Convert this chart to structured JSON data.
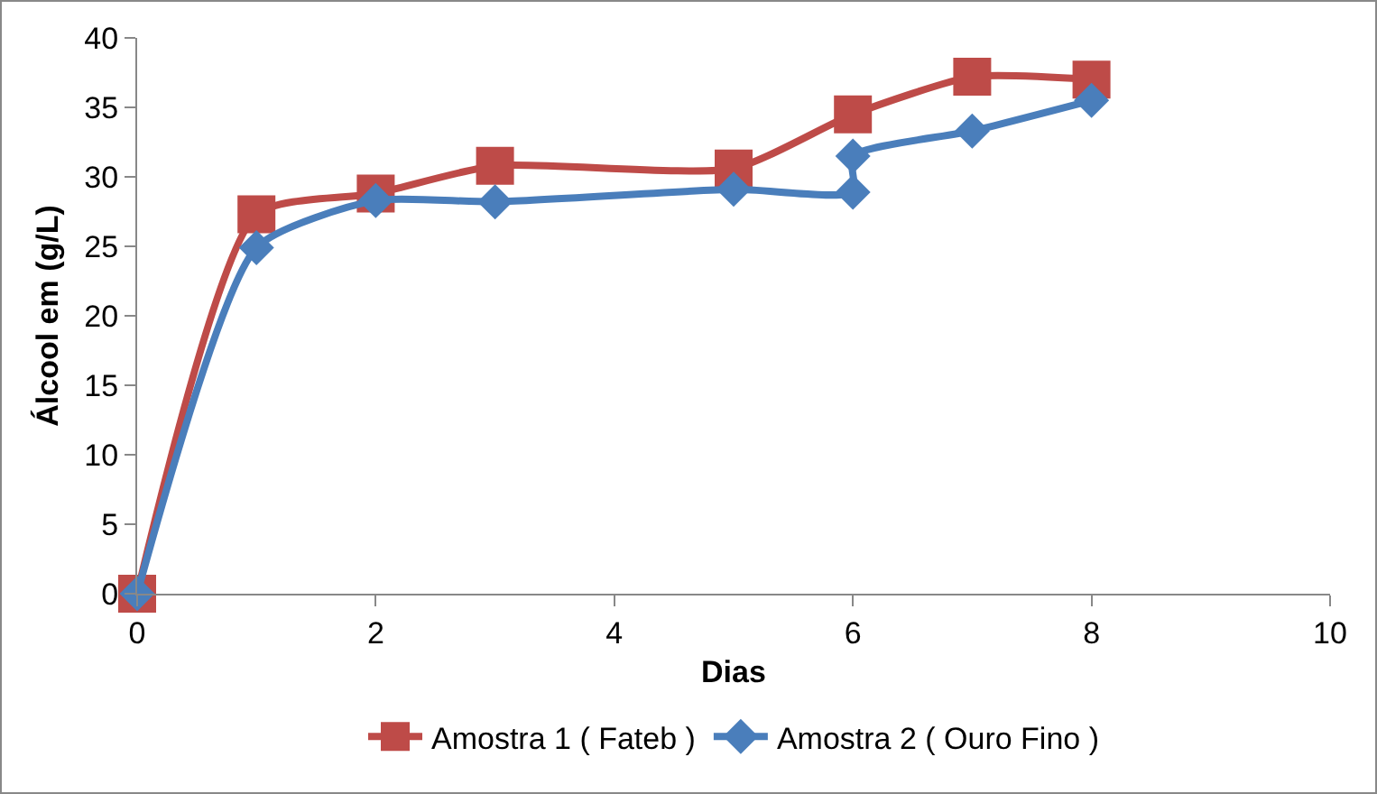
{
  "chart_data": {
    "type": "line",
    "xlabel": "Dias",
    "ylabel": "Álcool em (g/L)",
    "xlim": [
      0,
      10
    ],
    "xticks": [
      0,
      2,
      4,
      6,
      8,
      10
    ],
    "ylim": [
      0,
      40
    ],
    "yticks": [
      0,
      5,
      10,
      15,
      20,
      25,
      30,
      35,
      40
    ],
    "grid": false,
    "legend": "bottom",
    "series": [
      {
        "name": "Amostra 1 ( Fateb )",
        "color": "#be4b48",
        "marker": "square",
        "x": [
          0,
          1,
          2,
          3,
          5,
          6,
          7,
          8
        ],
        "values": [
          0,
          27.3,
          28.8,
          30.8,
          30.6,
          34.5,
          37.2,
          37.0
        ]
      },
      {
        "name": "Amostra 2 ( Ouro Fino )",
        "color": "#4a7ebb",
        "marker": "diamond",
        "x": [
          0,
          1,
          2,
          3,
          5,
          6,
          6,
          7,
          8
        ],
        "values": [
          0,
          24.9,
          28.3,
          28.2,
          29.1,
          28.9,
          31.5,
          33.3,
          35.5
        ]
      }
    ]
  }
}
